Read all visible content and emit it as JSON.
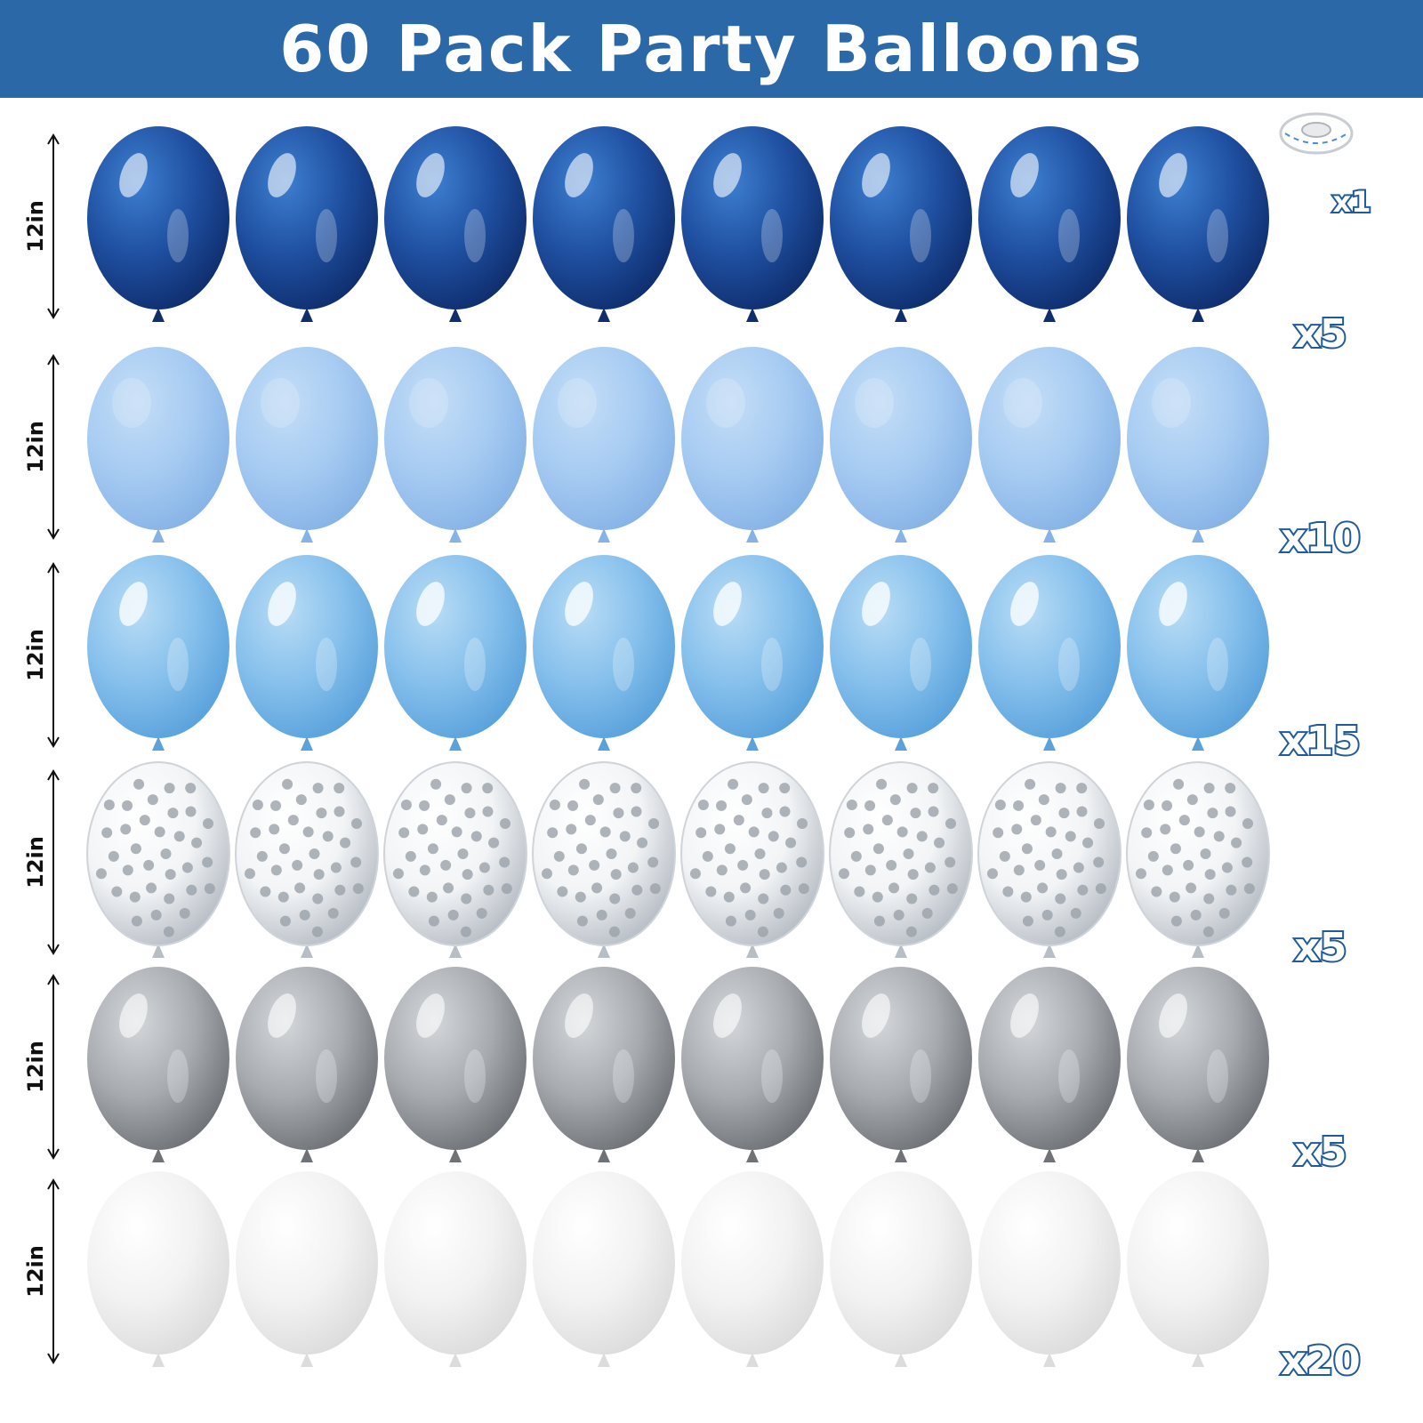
{
  "title": "60 Pack Party Balloons",
  "ribbon": {
    "count": "x1"
  },
  "rows": [
    {
      "size": "12in",
      "count": "x5",
      "style": "metallic",
      "base": "#1f4fa0",
      "mid": "#3e7fd0",
      "dark": "#0f2e6e"
    },
    {
      "size": "12in",
      "count": "x10",
      "style": "matte",
      "base": "#a6cbf2",
      "mid": "#c4ddf7",
      "dark": "#86b3e6"
    },
    {
      "size": "12in",
      "count": "x15",
      "style": "pearl",
      "base": "#86c0ec",
      "mid": "#b9dcf5",
      "dark": "#5aa2dc"
    },
    {
      "size": "12in",
      "count": "x5",
      "style": "confetti",
      "base": "#f2f4f6",
      "mid": "#ffffff",
      "dark": "#b8bec6"
    },
    {
      "size": "12in",
      "count": "x5",
      "style": "metallic",
      "base": "#a7abb0",
      "mid": "#d4d7da",
      "dark": "#6f7378"
    },
    {
      "size": "12in",
      "count": "x20",
      "style": "matte",
      "base": "#f2f2f2",
      "mid": "#ffffff",
      "dark": "#dcdcdc"
    }
  ],
  "balloons_per_row": 8
}
